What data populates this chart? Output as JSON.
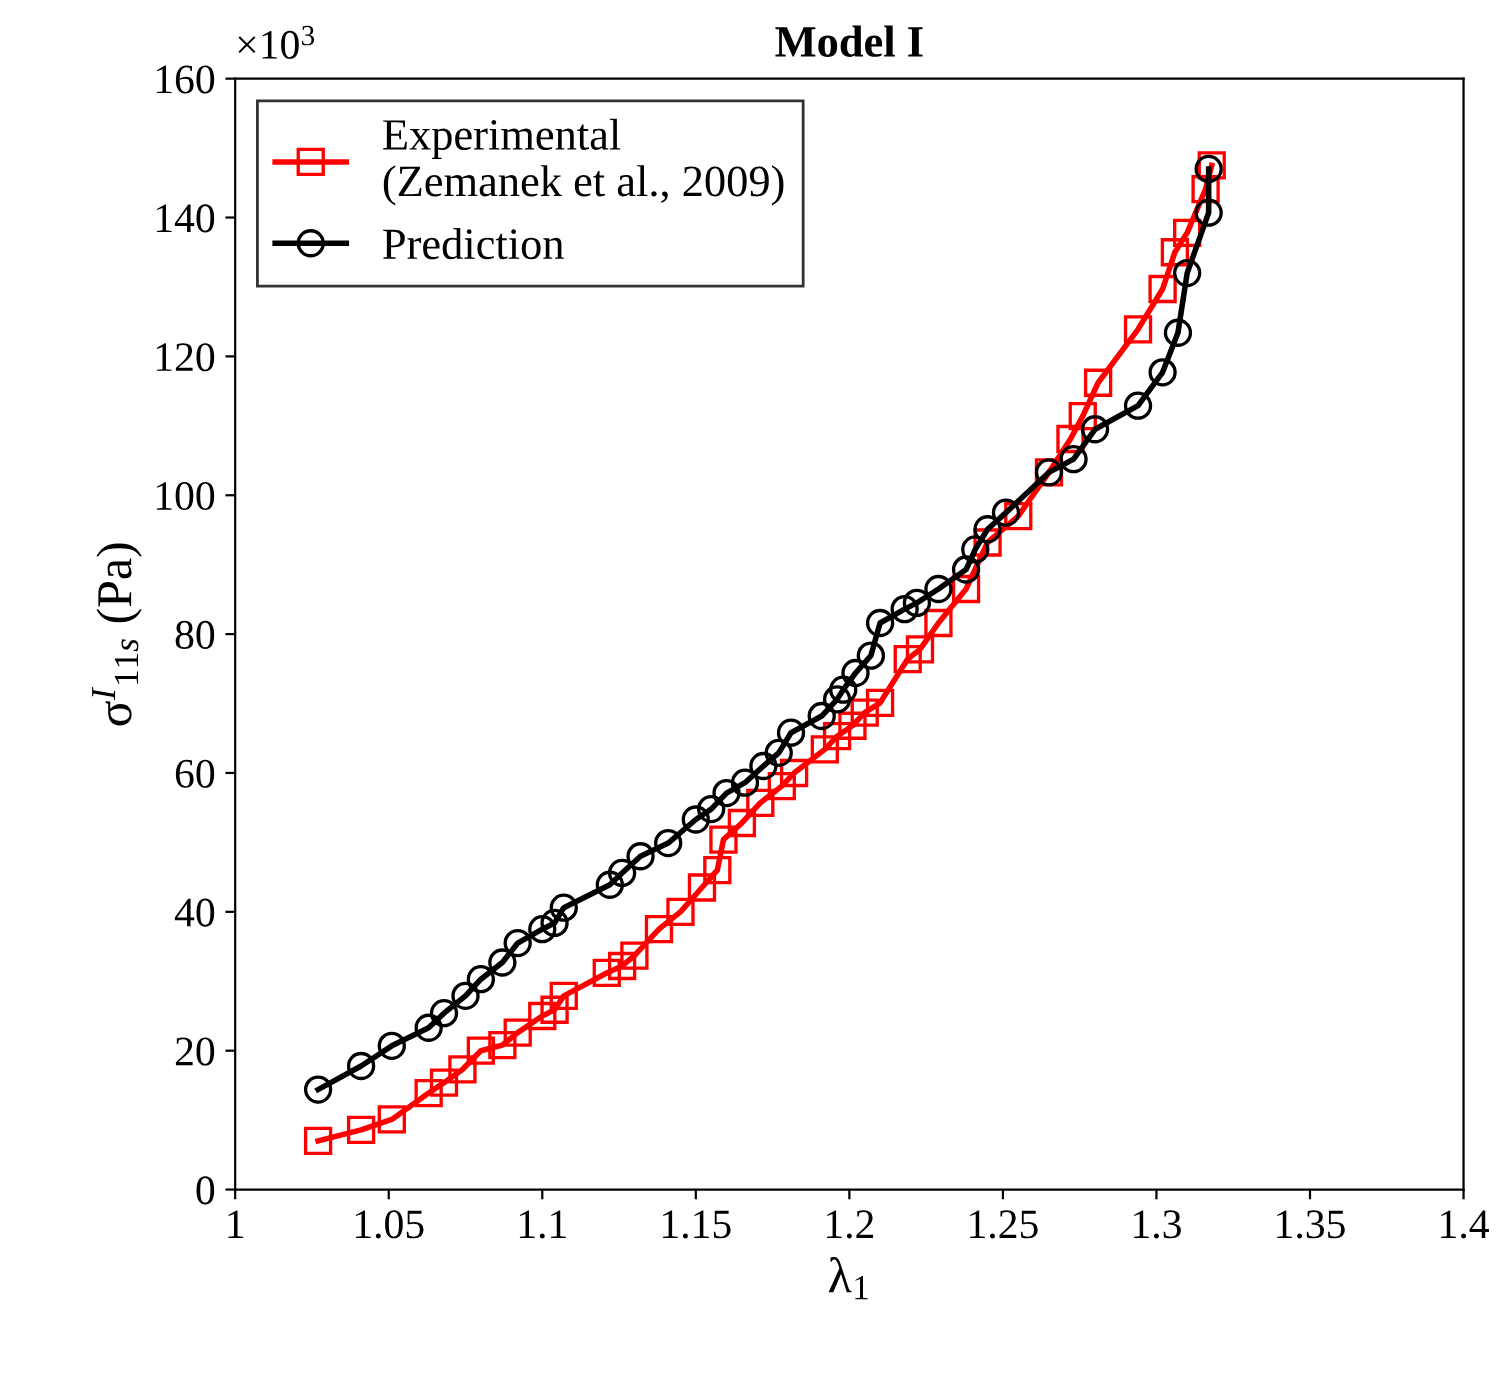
{
  "chart_data": {
    "type": "line",
    "title": "Model I",
    "xlabel": "λ$_{1}$",
    "ylabel": "σ$^{I}$$_{11s}$ (Pa)",
    "annotations": [
      "×10$^{3}$"
    ],
    "xlim": [
      1,
      1.4
    ],
    "xticks": [
      1,
      1.05,
      1.1,
      1.15,
      1.2,
      1.25,
      1.3,
      1.35,
      1.4
    ],
    "ylim": [
      0,
      160
    ],
    "yticks": [
      0,
      20,
      40,
      60,
      80,
      100,
      120,
      140,
      160
    ],
    "grid": false,
    "legend": "top left",
    "line_style": "solid",
    "series": [
      {
        "name": "Experimental\n(Zemanek et al., 2009)",
        "color": "#ff0000",
        "marker": "square",
        "x": [
          1.027,
          1.041,
          1.051,
          1.063,
          1.068,
          1.074,
          1.08,
          1.087,
          1.092,
          1.1,
          1.104,
          1.107,
          1.121,
          1.126,
          1.13,
          1.138,
          1.145,
          1.152,
          1.157,
          1.159,
          1.165,
          1.171,
          1.178,
          1.182,
          1.192,
          1.196,
          1.201,
          1.205,
          1.21,
          1.219,
          1.223,
          1.229,
          1.238,
          1.245,
          1.255,
          1.265,
          1.272,
          1.276,
          1.281,
          1.294,
          1.302,
          1.306,
          1.31,
          1.316,
          1.318
        ],
        "values": [
          7.0,
          8.6,
          10.1,
          13.9,
          15.4,
          17.3,
          20.0,
          20.8,
          22.6,
          25.0,
          25.9,
          27.9,
          31.2,
          32.2,
          33.7,
          37.5,
          40,
          43.5,
          46,
          50.4,
          52.8,
          55.7,
          58.1,
          60.0,
          63.4,
          65.3,
          66.8,
          68.7,
          70.1,
          76.4,
          77.8,
          81.6,
          86.5,
          93.2,
          97.0,
          103.3,
          108.1,
          111.4,
          116.2,
          123.9,
          129.7,
          135.0,
          137.8,
          144.1,
          147.5
        ]
      },
      {
        "name": "Prediction",
        "color": "#000000",
        "marker": "circle",
        "x": [
          1.027,
          1.041,
          1.051,
          1.063,
          1.068,
          1.075,
          1.08,
          1.087,
          1.092,
          1.1,
          1.104,
          1.107,
          1.122,
          1.126,
          1.132,
          1.141,
          1.15,
          1.155,
          1.16,
          1.166,
          1.172,
          1.177,
          1.181,
          1.191,
          1.196,
          1.198,
          1.202,
          1.207,
          1.21,
          1.218,
          1.222,
          1.229,
          1.238,
          1.241,
          1.245,
          1.251,
          1.265,
          1.273,
          1.28,
          1.294,
          1.302,
          1.307,
          1.31,
          1.317,
          1.317
        ],
        "values": [
          14.4,
          17.8,
          20.7,
          23.3,
          25.4,
          27.9,
          30.3,
          32.7,
          35.5,
          37.5,
          38.4,
          40.6,
          43.9,
          45.6,
          48.0,
          49.9,
          53.3,
          54.8,
          57.1,
          58.6,
          61.0,
          62.9,
          65.8,
          68.2,
          70.6,
          72.0,
          74.4,
          76.9,
          81.6,
          83.6,
          84.5,
          86.5,
          89.3,
          92.2,
          95.1,
          97.5,
          103.3,
          105.2,
          109.5,
          112.9,
          117.7,
          123.4,
          132.0,
          140.7,
          147.0
        ]
      }
    ]
  }
}
